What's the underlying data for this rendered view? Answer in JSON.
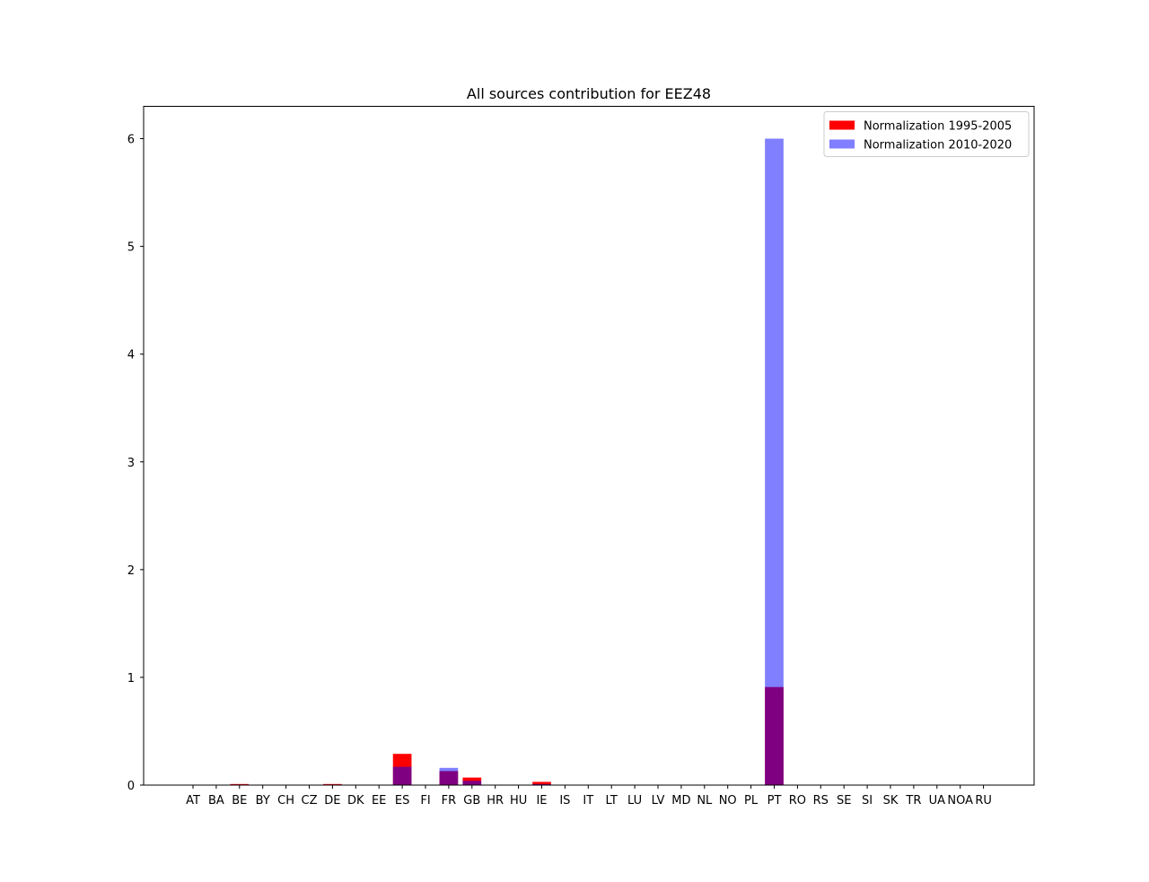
{
  "chart_data": {
    "type": "bar",
    "title": "All sources contribution for EEZ48",
    "xlabel": "",
    "ylabel": "",
    "ylim": [
      0,
      6.3
    ],
    "yticks": [
      0,
      1,
      2,
      3,
      4,
      5,
      6
    ],
    "grid": false,
    "legend_position": "top-right",
    "categories": [
      "AT",
      "BA",
      "BE",
      "BY",
      "CH",
      "CZ",
      "DE",
      "DK",
      "EE",
      "ES",
      "FI",
      "FR",
      "GB",
      "HR",
      "HU",
      "IE",
      "IS",
      "IT",
      "LT",
      "LU",
      "LV",
      "MD",
      "NL",
      "NO",
      "PL",
      "PT",
      "RO",
      "RS",
      "SE",
      "SI",
      "SK",
      "TR",
      "UA",
      "NOA",
      "RU"
    ],
    "series": [
      {
        "name": "Normalization 1995-2005",
        "color": "#ff0000",
        "opacity": 1.0,
        "values": [
          0,
          0,
          0.01,
          0,
          0,
          0,
          0.01,
          0,
          0,
          0.29,
          0,
          0.13,
          0.07,
          0,
          0,
          0.03,
          0,
          0,
          0,
          0,
          0,
          0,
          0,
          0,
          0,
          0.91,
          0,
          0,
          0,
          0,
          0,
          0,
          0,
          0,
          0
        ]
      },
      {
        "name": "Normalization 2010-2020",
        "color": "#0000ff",
        "opacity": 0.5,
        "values": [
          0,
          0,
          0.005,
          0,
          0,
          0,
          0.005,
          0,
          0,
          0.17,
          0,
          0.16,
          0.04,
          0,
          0,
          0.01,
          0,
          0,
          0,
          0,
          0,
          0,
          0,
          0,
          0,
          6.0,
          0,
          0,
          0,
          0,
          0,
          0,
          0,
          0,
          0
        ]
      }
    ]
  }
}
